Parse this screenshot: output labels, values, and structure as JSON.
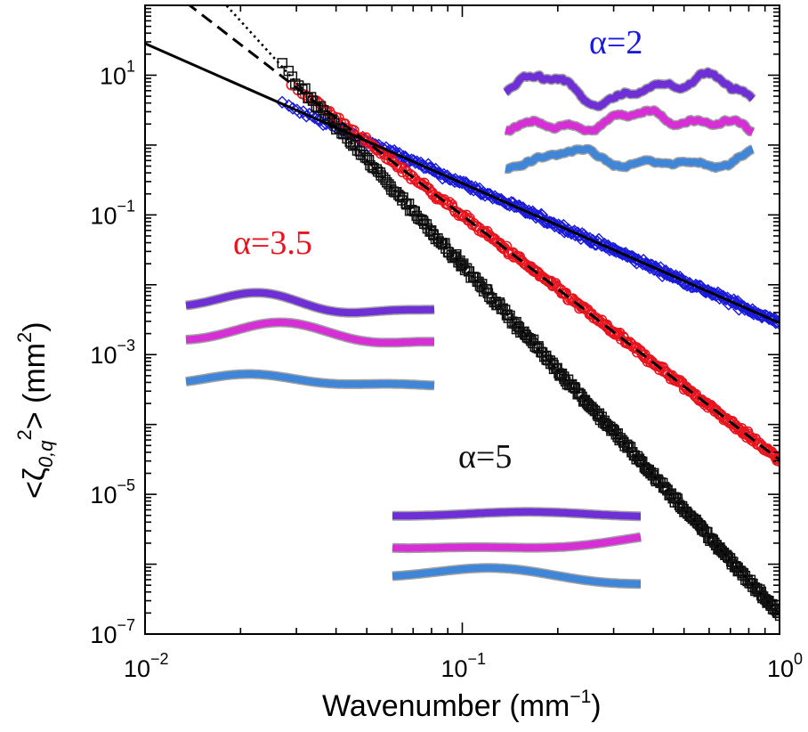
{
  "chart_data": {
    "type": "scatter",
    "x_scale": "log",
    "y_scale": "log",
    "xlim": [
      0.01,
      1
    ],
    "ylim": [
      1e-07,
      100
    ],
    "xlabel": "Wavenumber (mm",
    "xlabel_sup": "−1",
    "xlabel_close": ")",
    "ylabel_lt": "<ζ",
    "ylabel_sub": "0,q",
    "ylabel_sup": "2",
    "ylabel_rest": "> (mm",
    "ylabel_unit_sup": "2",
    "ylabel_close": ")",
    "x_ticks": [
      {
        "value": 0.01,
        "base": "10",
        "exp": "−2"
      },
      {
        "value": 0.1,
        "base": "10",
        "exp": "−1"
      },
      {
        "value": 1,
        "base": "10",
        "exp": "0"
      }
    ],
    "y_ticks": [
      {
        "value": 10,
        "base": "10",
        "exp": "1"
      },
      {
        "value": 0.1,
        "base": "10",
        "exp": "−1"
      },
      {
        "value": 0.001,
        "base": "10",
        "exp": "−3"
      },
      {
        "value": 1e-05,
        "base": "10",
        "exp": "−5"
      },
      {
        "value": 1e-07,
        "base": "10",
        "exp": "−7"
      }
    ],
    "series": [
      {
        "name": "α=2",
        "label": "α=2",
        "color": "#1a1adb",
        "marker": "diamond",
        "x_start": 0.027,
        "x_end": 1.0,
        "n_points": 330,
        "fit": {
          "amplitude": 0.00284,
          "exponent": -2,
          "x_from": 0.01,
          "x_to": 1.0,
          "style": "solid"
        }
      },
      {
        "name": "α=3.5",
        "label": "α=3.5",
        "color": "#e8141e",
        "marker": "circle",
        "x_start": 0.029,
        "x_end": 1.0,
        "n_points": 360,
        "fit": {
          "amplitude": 3.11e-05,
          "exponent": -3.5,
          "x_from": 0.0135,
          "x_to": 1.0,
          "style": "dashed"
        }
      },
      {
        "name": "α=5",
        "label": "α=5",
        "color": "#111111",
        "marker": "square",
        "x_start": 0.027,
        "x_end": 1.0,
        "n_points": 360,
        "fit": {
          "amplitude": 1.91e-07,
          "exponent": -5,
          "x_from": 0.0157,
          "x_to": 1.0,
          "style": "dotted"
        }
      }
    ],
    "inset_profile_colors": [
      "#6e2fd6",
      "#d62fd6",
      "#3f86d8"
    ]
  }
}
